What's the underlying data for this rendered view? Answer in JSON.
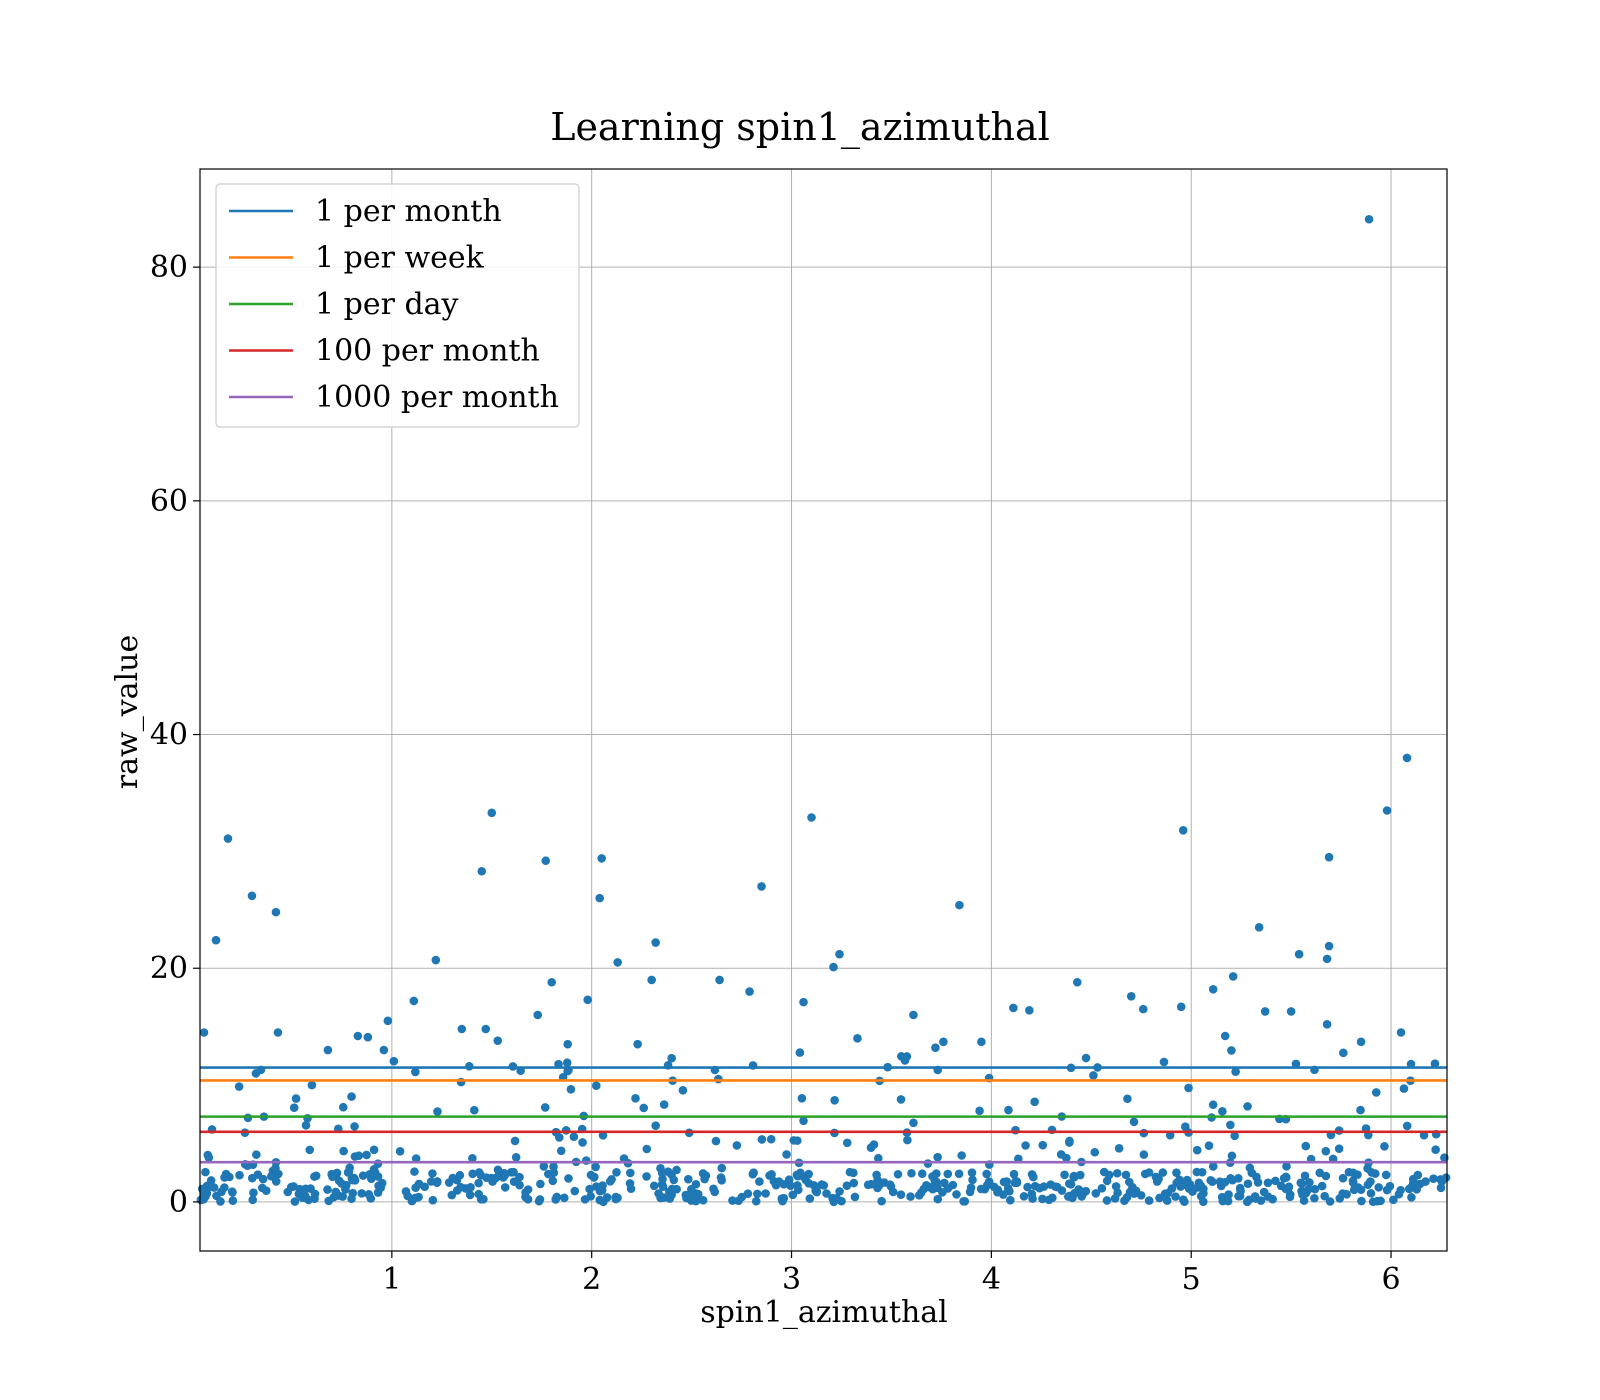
{
  "chart_data": {
    "type": "scatter",
    "title": "Learning spin1_azimuthal",
    "xlabel": "spin1_azimuthal",
    "ylabel": "raw_value",
    "xlim": [
      0.04,
      6.28
    ],
    "ylim": [
      -4.2,
      88.4
    ],
    "xticks": [
      1,
      2,
      3,
      4,
      5,
      6
    ],
    "yticks": [
      0,
      20,
      40,
      60,
      80
    ],
    "grid": true,
    "legend_position": "top-left",
    "scatter_color": "#1f77b4",
    "outliers": [
      [
        0.06,
        14.5
      ],
      [
        0.1,
        6.2
      ],
      [
        0.12,
        22.4
      ],
      [
        0.18,
        31.1
      ],
      [
        0.28,
        7.2
      ],
      [
        0.3,
        26.2
      ],
      [
        0.32,
        11.0
      ],
      [
        0.36,
        7.3
      ],
      [
        0.42,
        24.8
      ],
      [
        0.43,
        14.5
      ],
      [
        0.6,
        10.0
      ],
      [
        0.68,
        13.0
      ],
      [
        0.83,
        14.2
      ],
      [
        0.88,
        14.1
      ],
      [
        0.96,
        13.0
      ],
      [
        0.98,
        15.5
      ],
      [
        1.11,
        17.2
      ],
      [
        1.22,
        20.7
      ],
      [
        1.35,
        14.8
      ],
      [
        1.45,
        28.3
      ],
      [
        1.47,
        14.8
      ],
      [
        1.5,
        33.3
      ],
      [
        1.53,
        13.8
      ],
      [
        1.73,
        16.0
      ],
      [
        1.77,
        29.2
      ],
      [
        1.8,
        18.8
      ],
      [
        1.88,
        13.5
      ],
      [
        1.98,
        17.3
      ],
      [
        2.04,
        26.0
      ],
      [
        2.05,
        29.4
      ],
      [
        2.13,
        20.5
      ],
      [
        2.23,
        13.5
      ],
      [
        2.3,
        19.0
      ],
      [
        2.32,
        22.2
      ],
      [
        2.4,
        12.3
      ],
      [
        2.64,
        19.0
      ],
      [
        2.79,
        18.0
      ],
      [
        2.85,
        27.0
      ],
      [
        3.06,
        17.1
      ],
      [
        3.1,
        32.9
      ],
      [
        3.21,
        20.1
      ],
      [
        3.24,
        21.2
      ],
      [
        3.33,
        14.0
      ],
      [
        3.61,
        16.0
      ],
      [
        3.72,
        13.2
      ],
      [
        3.76,
        13.7
      ],
      [
        3.84,
        25.4
      ],
      [
        3.95,
        13.7
      ],
      [
        4.11,
        16.6
      ],
      [
        4.19,
        16.4
      ],
      [
        4.43,
        18.8
      ],
      [
        4.7,
        17.6
      ],
      [
        4.76,
        16.5
      ],
      [
        4.95,
        16.7
      ],
      [
        4.96,
        31.8
      ],
      [
        5.11,
        18.2
      ],
      [
        5.17,
        14.2
      ],
      [
        5.21,
        19.3
      ],
      [
        5.34,
        23.5
      ],
      [
        5.37,
        16.3
      ],
      [
        5.5,
        16.3
      ],
      [
        5.54,
        21.2
      ],
      [
        5.68,
        20.8
      ],
      [
        5.69,
        29.5
      ],
      [
        5.69,
        21.9
      ],
      [
        5.68,
        15.2
      ],
      [
        5.85,
        13.7
      ],
      [
        5.89,
        84.1
      ],
      [
        5.98,
        33.5
      ],
      [
        6.05,
        14.5
      ],
      [
        6.08,
        38.0
      ],
      [
        6.1,
        11.8
      ]
    ],
    "bulk_points": {
      "count": 680,
      "x_range": [
        0.04,
        6.28
      ],
      "y_range": [
        0,
        13
      ],
      "note": "dense scatter of values concentrated between 0 and 4"
    },
    "series": [
      {
        "name": "1 per month",
        "value": 11.5,
        "color": "#1f77b4"
      },
      {
        "name": "1 per week",
        "value": 10.4,
        "color": "#ff7f0e"
      },
      {
        "name": "1 per day",
        "value": 7.3,
        "color": "#2ca02c"
      },
      {
        "name": "100 per month",
        "value": 6.0,
        "color": "#d62728"
      },
      {
        "name": "1000 per month",
        "value": 3.4,
        "color": "#9467bd"
      }
    ]
  }
}
